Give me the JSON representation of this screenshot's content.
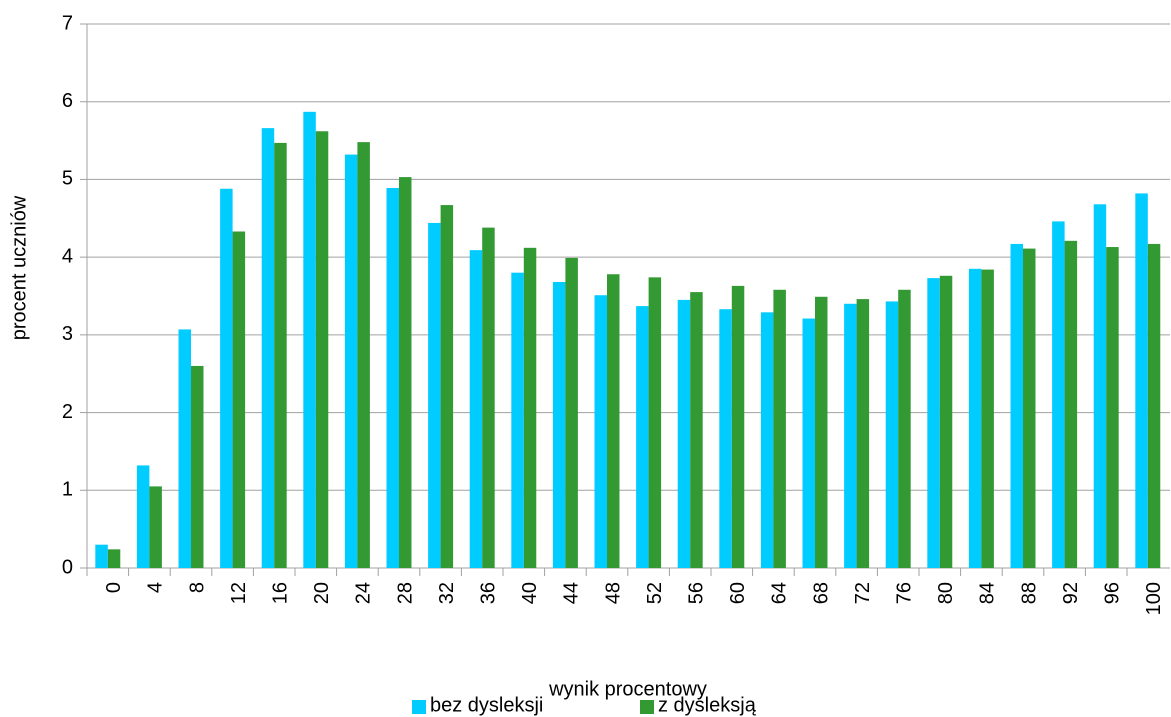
{
  "chart_data": {
    "type": "bar",
    "xlabel": "wynik procentowy",
    "ylabel": "procent uczniów",
    "categories": [
      "0",
      "4",
      "8",
      "12",
      "16",
      "20",
      "24",
      "28",
      "32",
      "36",
      "40",
      "44",
      "48",
      "52",
      "56",
      "60",
      "64",
      "68",
      "72",
      "76",
      "80",
      "84",
      "88",
      "92",
      "96",
      "100"
    ],
    "series": [
      {
        "name": "bez dysleksji",
        "color": "#00ccff",
        "values": [
          0.3,
          1.32,
          3.07,
          4.88,
          5.66,
          5.87,
          5.32,
          4.89,
          4.44,
          4.09,
          3.8,
          3.68,
          3.51,
          3.37,
          3.45,
          3.33,
          3.29,
          3.21,
          3.4,
          3.43,
          3.73,
          3.85,
          4.17,
          4.46,
          4.68,
          4.82
        ]
      },
      {
        "name": "z dysleksją",
        "color": "#339933",
        "values": [
          0.24,
          1.05,
          2.6,
          4.33,
          5.47,
          5.62,
          5.48,
          5.03,
          4.67,
          4.38,
          4.12,
          3.99,
          3.78,
          3.74,
          3.55,
          3.63,
          3.58,
          3.49,
          3.46,
          3.58,
          3.76,
          3.84,
          4.11,
          4.21,
          4.13,
          4.17
        ]
      }
    ],
    "ylim": [
      0,
      7
    ],
    "yticks": [
      0,
      1,
      2,
      3,
      4,
      5,
      6,
      7
    ],
    "grid": true,
    "legend": "bottom"
  }
}
